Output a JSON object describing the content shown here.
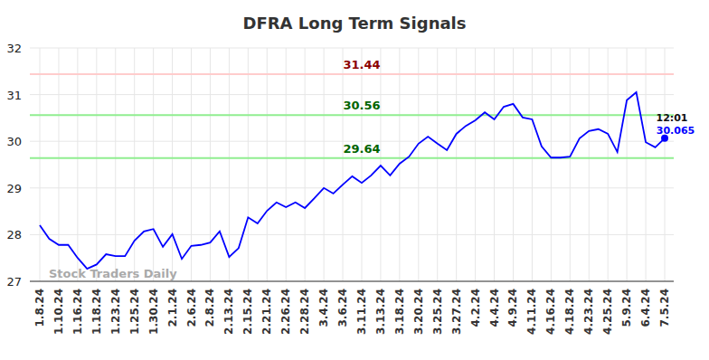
{
  "chart_data": {
    "type": "line",
    "title": "DFRA Long Term Signals",
    "categories": [
      "1.8.24",
      null,
      "1.10.24",
      null,
      "1.16.24",
      null,
      "1.18.24",
      null,
      "1.23.24",
      null,
      "1.25.24",
      null,
      "1.30.24",
      null,
      "2.1.24",
      null,
      "2.6.24",
      null,
      "2.8.24",
      null,
      "2.13.24",
      null,
      "2.15.24",
      null,
      "2.21.24",
      null,
      "2.26.24",
      null,
      "2.28.24",
      null,
      "3.4.24",
      null,
      "3.6.24",
      null,
      "3.11.24",
      null,
      "3.13.24",
      null,
      "3.18.24",
      null,
      "3.20.24",
      null,
      "3.25.24",
      null,
      "3.27.24",
      null,
      "4.2.24",
      null,
      "4.4.24",
      null,
      "4.9.24",
      null,
      "4.11.24",
      null,
      "4.16.24",
      null,
      "4.18.24",
      null,
      "4.23.24",
      null,
      "4.25.24",
      null,
      "5.9.24",
      null,
      "6.4.24",
      null,
      "7.5.24"
    ],
    "series": [
      {
        "name": "DFRA",
        "color": "#0000ff",
        "values": [
          28.2,
          27.91,
          27.78,
          27.78,
          27.5,
          27.27,
          27.36,
          27.58,
          27.54,
          27.54,
          27.87,
          28.07,
          28.12,
          27.74,
          28.01,
          27.48,
          27.76,
          27.78,
          27.83,
          28.07,
          27.52,
          27.71,
          28.37,
          28.24,
          28.51,
          28.69,
          28.59,
          28.69,
          28.57,
          28.78,
          29.0,
          28.88,
          29.07,
          29.25,
          29.11,
          29.27,
          29.48,
          29.27,
          29.52,
          29.67,
          29.95,
          30.1,
          29.95,
          29.81,
          30.16,
          30.33,
          30.45,
          30.62,
          30.47,
          30.74,
          30.8,
          30.51,
          30.47,
          29.89,
          29.65,
          29.65,
          29.67,
          30.06,
          30.22,
          30.26,
          30.16,
          29.77,
          30.88,
          31.05,
          29.98,
          29.87,
          30.065
        ]
      }
    ],
    "ylim": [
      27,
      32
    ],
    "yticks": [
      27,
      28,
      29,
      30,
      31,
      32
    ],
    "grid": true,
    "levels": [
      {
        "value": 31.44,
        "label": "31.44",
        "color": "#ffcccc"
      },
      {
        "value": 30.56,
        "label": "30.56",
        "color": "#90ee90"
      },
      {
        "value": 29.64,
        "label": "29.64",
        "color": "#90ee90"
      }
    ],
    "last_point_labels": [
      "12:01",
      "30.065"
    ],
    "watermark": "Stock Traders Daily"
  }
}
